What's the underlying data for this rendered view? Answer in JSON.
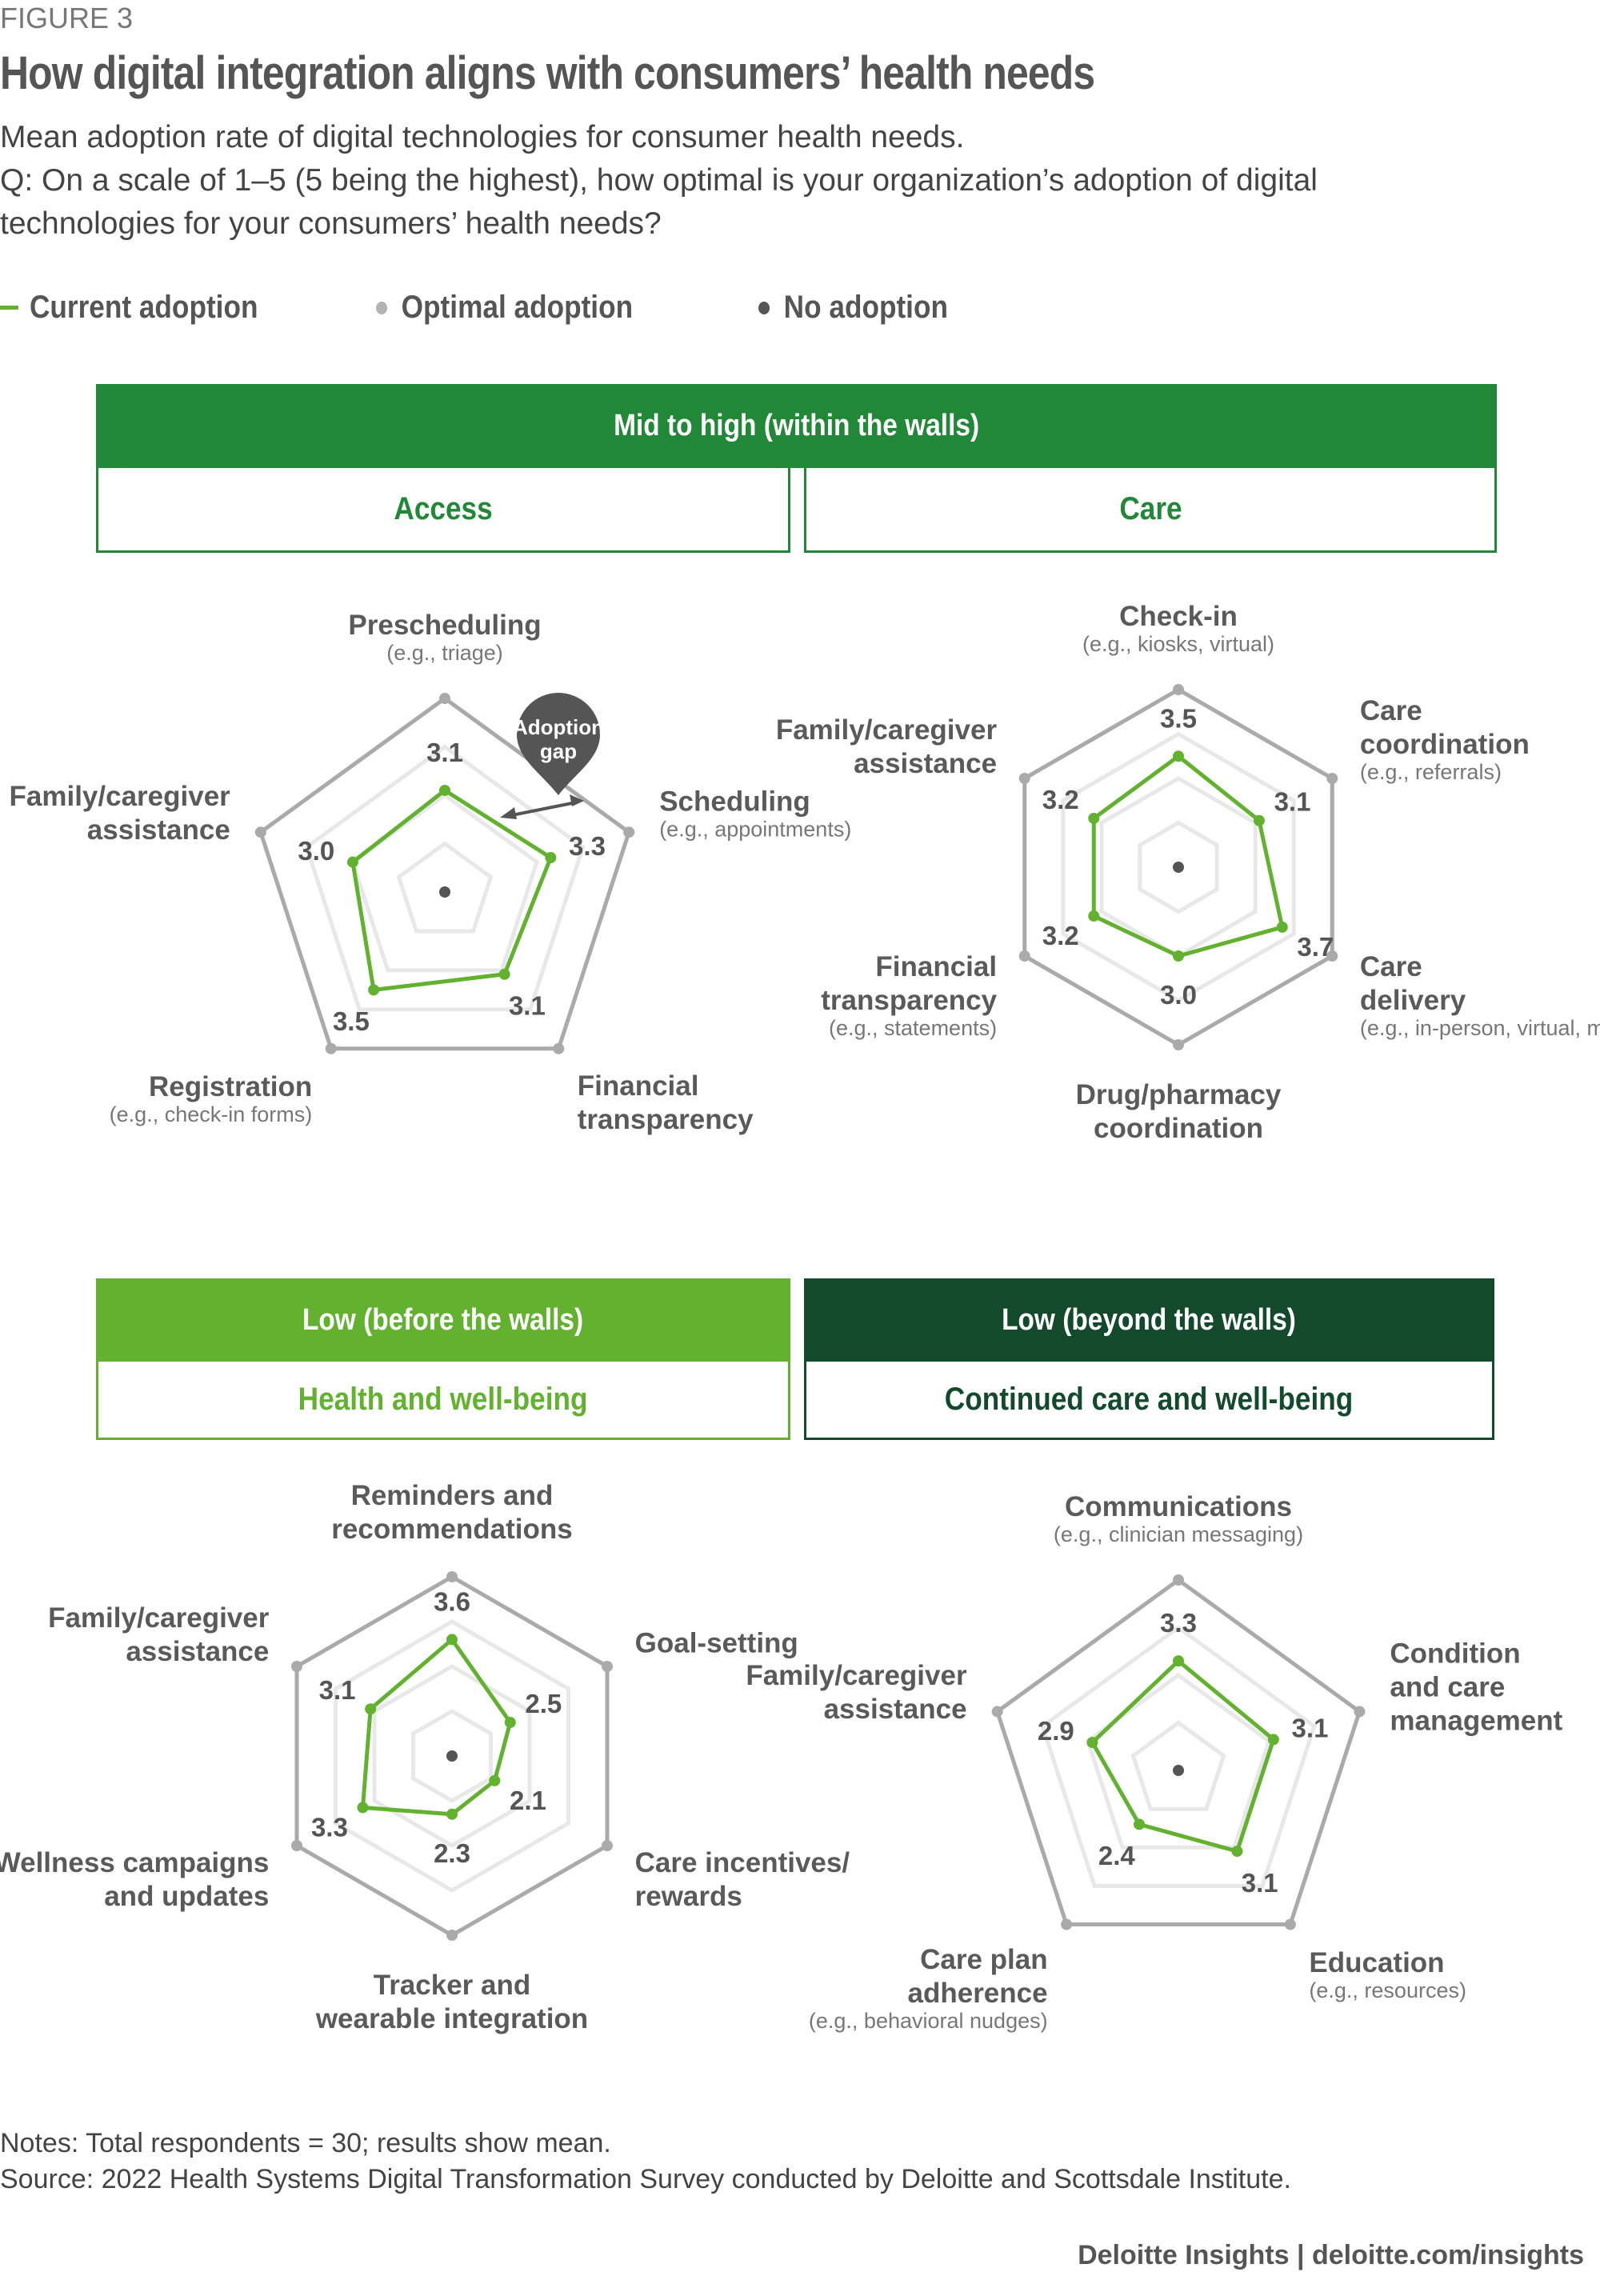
{
  "figure_label": "FIGURE 3",
  "title": "How digital integration aligns with consumers’ health needs",
  "subtitle": [
    "Mean adoption rate of digital technologies for consumer health needs.",
    "Q: On a scale of 1–5 (5 being the highest), how optimal is your organization’s adoption of digital",
    "technologies for your consumers’ health needs?"
  ],
  "legend": [
    {
      "label": "Current adoption",
      "marker": "line",
      "color": "#62b22f"
    },
    {
      "label": "Optimal adoption",
      "marker": "dot",
      "color": "#b3b3b3"
    },
    {
      "label": "No adoption",
      "marker": "dot",
      "color": "#555555"
    }
  ],
  "colors": {
    "mid_high": "#218838",
    "low_before": "#62b22f",
    "low_beyond": "#134a2c",
    "current": "#62b22f",
    "optimal": "#aaaaaa",
    "grid": "#e8e8e8",
    "no_adoption": "#555555"
  },
  "groups": {
    "mid_high": "Mid to high (within the walls)",
    "access": "Access",
    "care": "Care",
    "low_before": "Low (before the walls)",
    "health": "Health and well-being",
    "low_beyond": "Low (beyond the walls)",
    "continued": "Continued care and well-being"
  },
  "annotation": {
    "adoption_gap": [
      "Adoption",
      "gap"
    ]
  },
  "chart_data": [
    {
      "type": "radar",
      "panel": "Access",
      "scale": [
        1,
        5
      ],
      "axes": [
        {
          "label": [
            "Prescheduling"
          ],
          "example": "(e.g., triage)",
          "value": 3.1
        },
        {
          "label": [
            "Scheduling"
          ],
          "example": "(e.g., appointments)",
          "value": 3.3
        },
        {
          "label": [
            "Financial",
            "transparency"
          ],
          "example": "",
          "value": 3.1
        },
        {
          "label": [
            "Registration"
          ],
          "example": "(e.g., check-in forms)",
          "value": 3.5
        },
        {
          "label": [
            "Family/caregiver",
            "assistance"
          ],
          "example": "",
          "value": 3.0
        }
      ]
    },
    {
      "type": "radar",
      "panel": "Care",
      "scale": [
        1,
        5
      ],
      "axes": [
        {
          "label": [
            "Check-in"
          ],
          "example": "(e.g., kiosks, virtual)",
          "value": 3.5
        },
        {
          "label": [
            "Care",
            "coordination"
          ],
          "example": "(e.g., referrals)",
          "value": 3.1
        },
        {
          "label": [
            "Care",
            "delivery"
          ],
          "example": "(e.g., in-person, virtual, multimodal)",
          "value": 3.7
        },
        {
          "label": [
            "Drug/pharmacy",
            "coordination"
          ],
          "example": "",
          "value": 3.0
        },
        {
          "label": [
            "Financial",
            "transparency"
          ],
          "example": "(e.g., statements)",
          "value": 3.2
        },
        {
          "label": [
            "Family/caregiver",
            "assistance"
          ],
          "example": "",
          "value": 3.2
        }
      ]
    },
    {
      "type": "radar",
      "panel": "Health and well-being",
      "scale": [
        1,
        5
      ],
      "axes": [
        {
          "label": [
            "Reminders and",
            "recommendations"
          ],
          "example": "",
          "value": 3.6
        },
        {
          "label": [
            "Goal-setting"
          ],
          "example": "",
          "value": 2.5
        },
        {
          "label": [
            "Care incentives/",
            "rewards"
          ],
          "example": "",
          "value": 2.1
        },
        {
          "label": [
            "Tracker and",
            "wearable integration"
          ],
          "example": "",
          "value": 2.3
        },
        {
          "label": [
            "Wellness campaigns",
            "and updates"
          ],
          "example": "",
          "value": 3.3
        },
        {
          "label": [
            "Family/caregiver",
            "assistance"
          ],
          "example": "",
          "value": 3.1
        }
      ]
    },
    {
      "type": "radar",
      "panel": "Continued care and well-being",
      "scale": [
        1,
        5
      ],
      "axes": [
        {
          "label": [
            "Communications"
          ],
          "example": "(e.g., clinician messaging)",
          "value": 3.3
        },
        {
          "label": [
            "Condition",
            "and care",
            "management"
          ],
          "example": "",
          "value": 3.1
        },
        {
          "label": [
            "Education"
          ],
          "example": "(e.g., resources)",
          "value": 3.1
        },
        {
          "label": [
            "Care plan",
            "adherence"
          ],
          "example": "(e.g., behavioral nudges)",
          "value": 2.4
        },
        {
          "label": [
            "Family/caregiver",
            "assistance"
          ],
          "example": "",
          "value": 2.9
        }
      ]
    }
  ],
  "notes": "Notes: Total respondents = 30; results show mean.",
  "source": "Source: 2022 Health Systems Digital Transformation Survey conducted by Deloitte and Scottsdale Institute.",
  "footer": "Deloitte Insights | deloitte.com/insights"
}
